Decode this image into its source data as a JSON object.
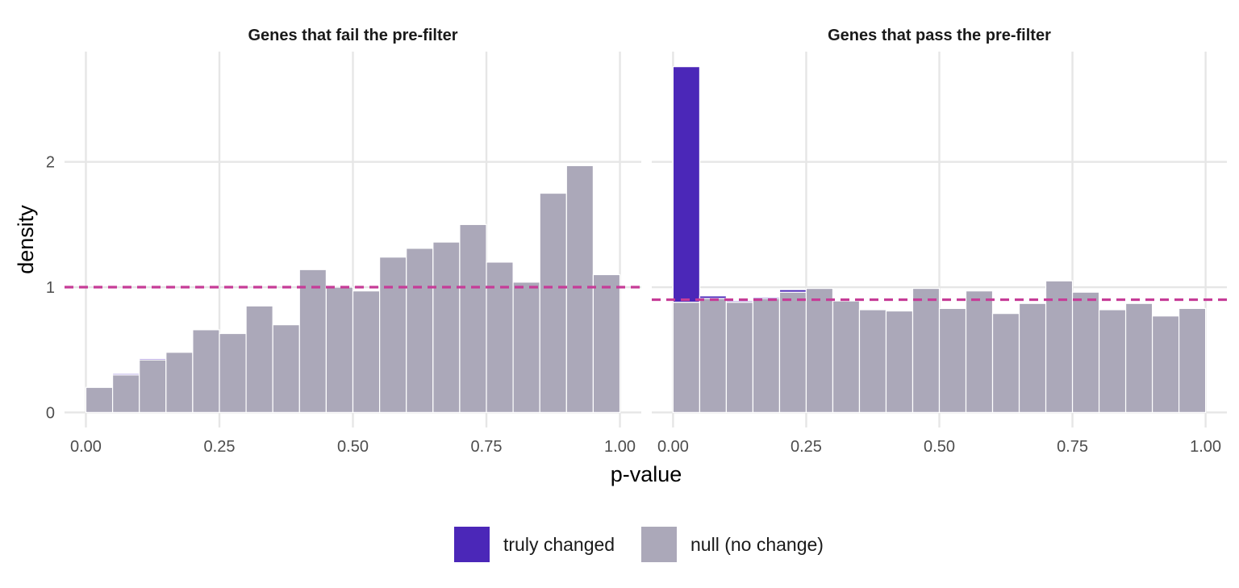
{
  "chart_data": {
    "type": "bar",
    "xlabel": "p-value",
    "ylabel": "density",
    "x_ticks": [
      "0.00",
      "0.25",
      "0.50",
      "0.75",
      "1.00"
    ],
    "x_tick_values": [
      0,
      0.25,
      0.5,
      0.75,
      1
    ],
    "y_ticks": [
      "0",
      "1",
      "2"
    ],
    "y_tick_values": [
      0,
      1,
      2
    ],
    "xlim": [
      -0.04,
      1.04
    ],
    "ylim": [
      -0.12,
      2.88
    ],
    "bin_width": 0.05,
    "grid": true,
    "legend": {
      "position": "bottom",
      "entries": [
        {
          "label": "truly changed",
          "color": "#4B27B8"
        },
        {
          "label": "null (no change)",
          "color": "#ABA8B9"
        }
      ]
    },
    "colors": {
      "changed": "#4B27B8",
      "null": "#ABA8B9",
      "reference_line": "#C63C97",
      "bar_edge": "#ffffff"
    },
    "panels": [
      {
        "title": "Genes that fail the pre-filter",
        "bin_starts": [
          0,
          0.05,
          0.1,
          0.15,
          0.2,
          0.25,
          0.3,
          0.35,
          0.4,
          0.45,
          0.5,
          0.55,
          0.6,
          0.65,
          0.7,
          0.75,
          0.8,
          0.85,
          0.9,
          0.95
        ],
        "null_density": [
          0.2,
          0.3,
          0.42,
          0.48,
          0.66,
          0.63,
          0.85,
          0.7,
          1.14,
          1.0,
          0.97,
          1.24,
          1.31,
          1.36,
          1.5,
          1.2,
          1.04,
          1.75,
          1.97,
          1.1
        ],
        "changed_density": [
          0,
          0.01,
          0.01,
          0,
          0,
          0,
          0,
          0,
          0,
          0,
          0,
          0,
          0,
          0,
          0,
          0,
          0,
          0,
          0,
          0
        ],
        "reference_line": 1.0
      },
      {
        "title": "Genes that pass the pre-filter",
        "bin_starts": [
          0,
          0.05,
          0.1,
          0.15,
          0.2,
          0.25,
          0.3,
          0.35,
          0.4,
          0.45,
          0.5,
          0.55,
          0.6,
          0.65,
          0.7,
          0.75,
          0.8,
          0.85,
          0.9,
          0.95
        ],
        "null_density": [
          0.88,
          0.91,
          0.88,
          0.91,
          0.96,
          0.99,
          0.89,
          0.82,
          0.81,
          0.99,
          0.83,
          0.97,
          0.79,
          0.87,
          1.05,
          0.96,
          0.82,
          0.87,
          0.77,
          0.83
        ],
        "changed_density": [
          1.88,
          0.02,
          0.01,
          0.01,
          0.02,
          0,
          0,
          0,
          0,
          0,
          0,
          0,
          0,
          0,
          0,
          0,
          0,
          0,
          0,
          0
        ],
        "reference_line": 0.9
      }
    ]
  }
}
